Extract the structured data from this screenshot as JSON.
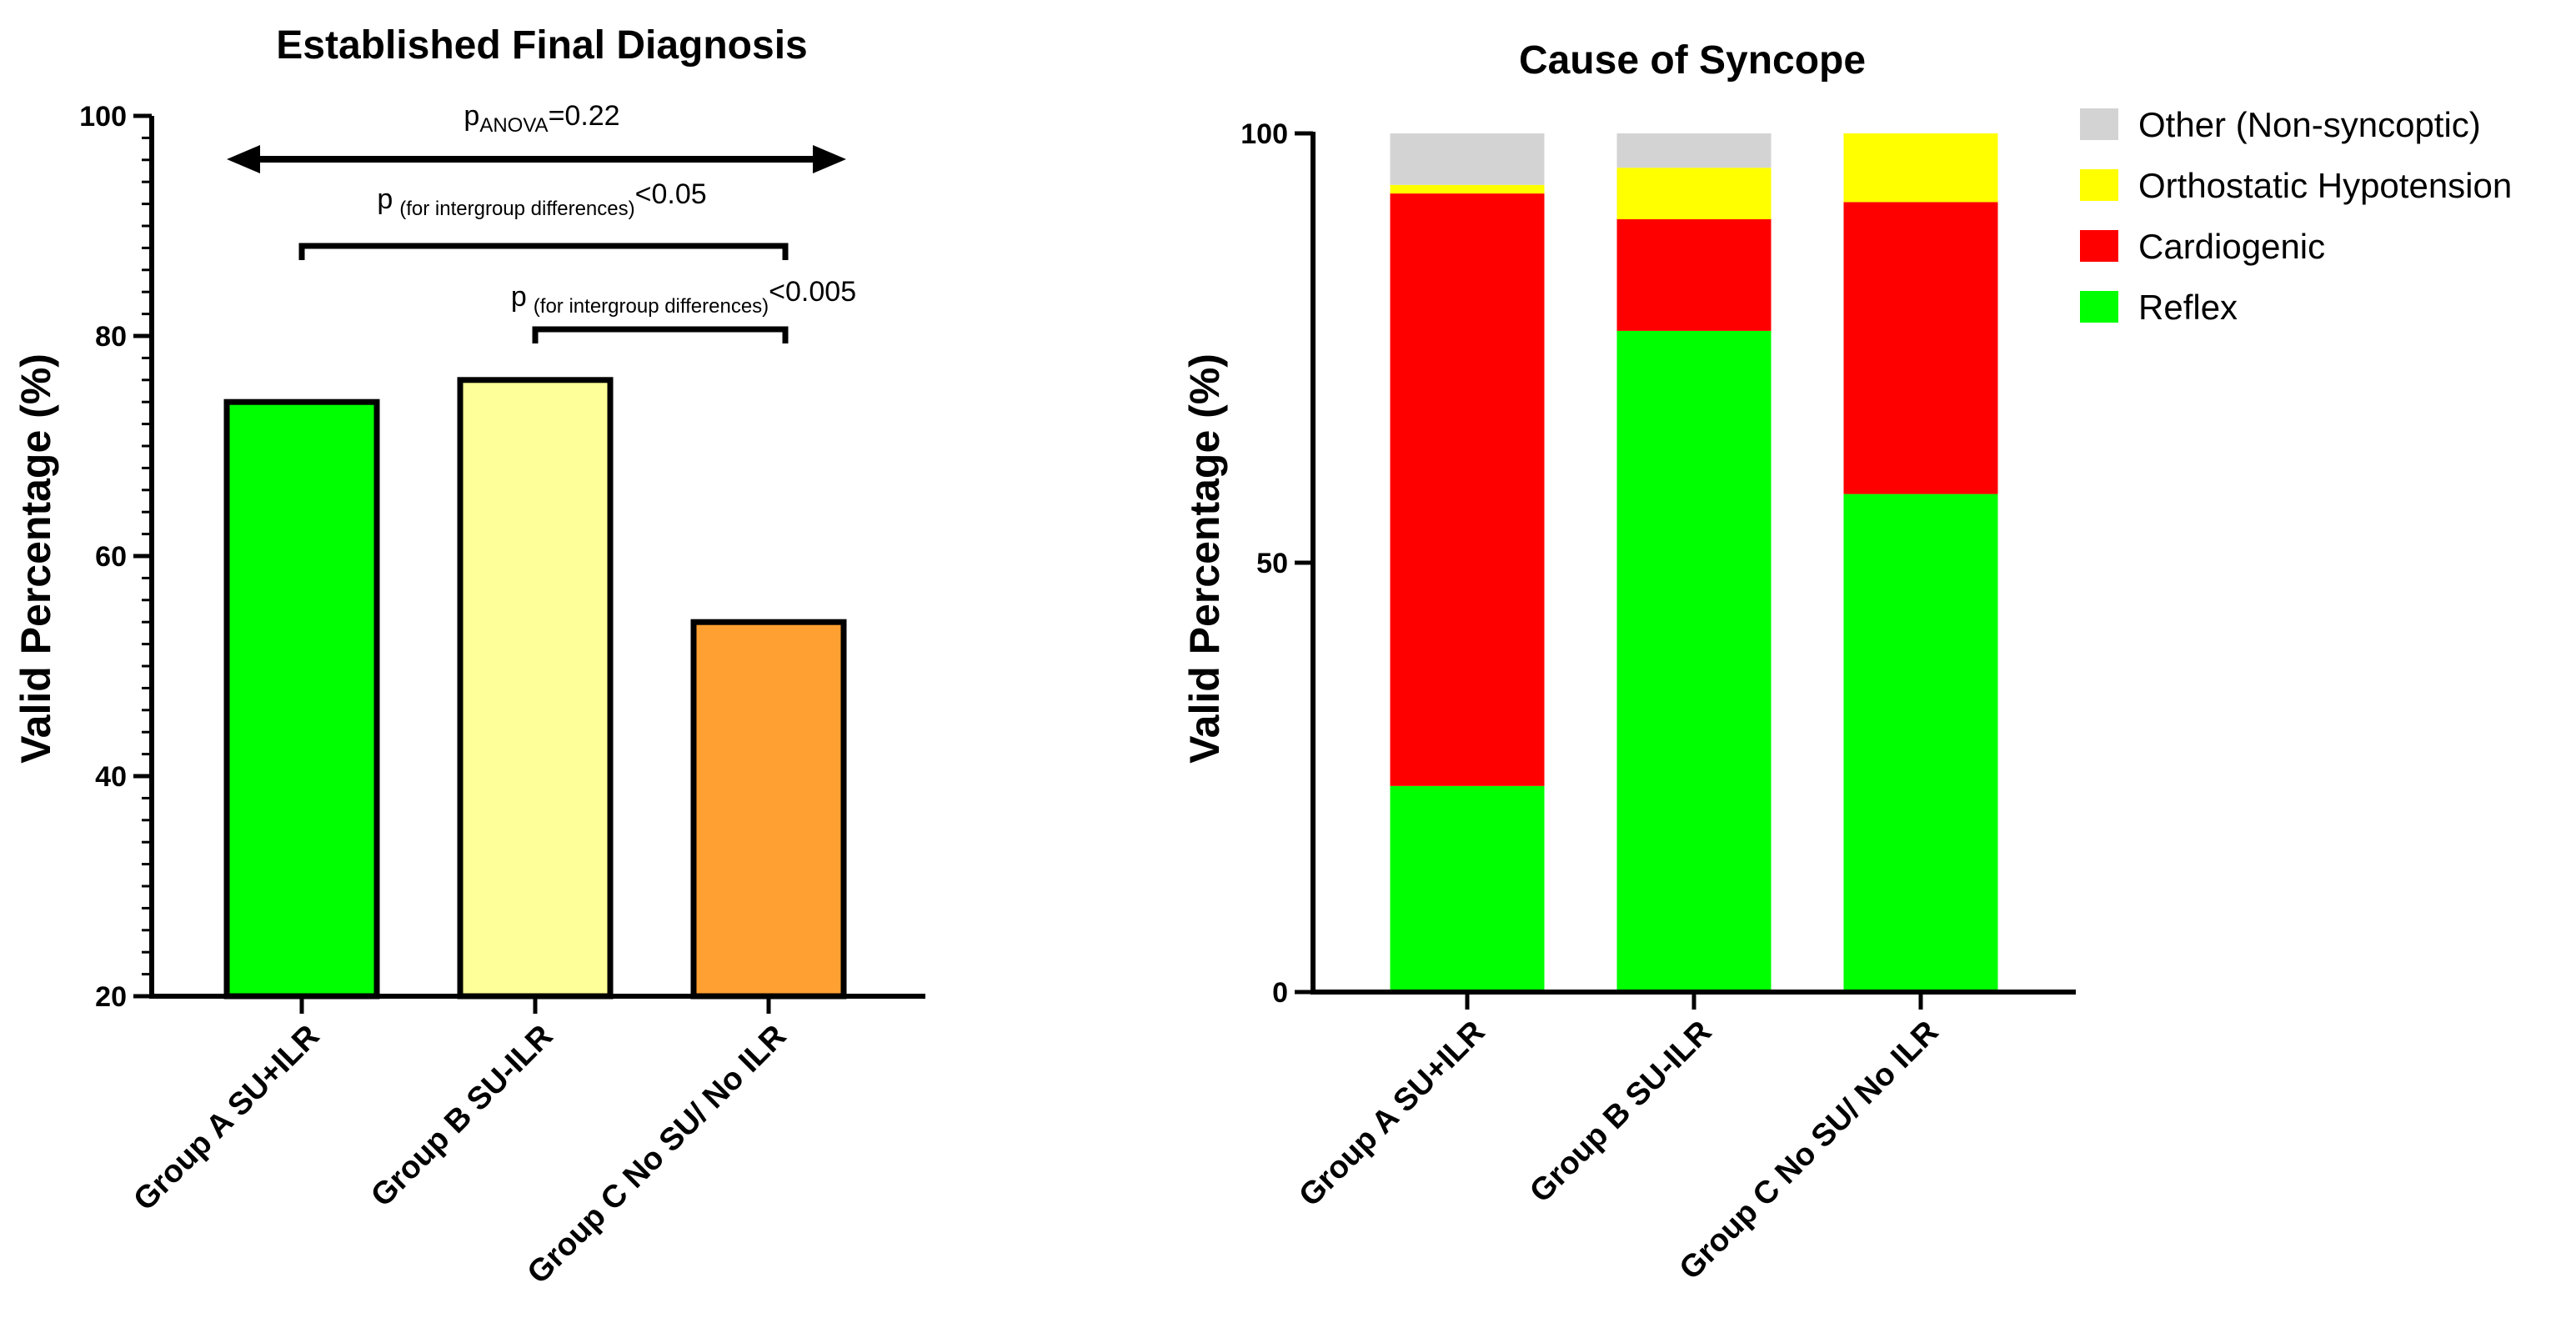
{
  "chart_data": [
    {
      "type": "bar",
      "title": "Established Final Diagnosis",
      "ylabel": "Valid Percentage (%)",
      "xlabel": "",
      "ylim": [
        20,
        100
      ],
      "yticks": [
        "20",
        "40",
        "60",
        "80",
        "100"
      ],
      "categories": [
        "Group A SU+ILR",
        "Group B SU-ILR",
        "Group C No SU/ No ILR"
      ],
      "values": [
        74,
        76,
        54
      ],
      "colors": [
        "#00FF00",
        "#FFFF99",
        "#FFA033"
      ],
      "annotations": {
        "anova": {
          "p": "p",
          "sub": "ANOVA",
          "rest": "=0.22"
        },
        "inter1": {
          "p": "p",
          "sub": "(for intergroup differences)",
          "rest": "<0.05"
        },
        "inter2": {
          "p": "p",
          "sub": "(for intergroup differences)",
          "rest": "<0.005"
        }
      }
    },
    {
      "type": "bar",
      "stacked": true,
      "title": "Cause of Syncope",
      "ylabel": "Valid Percentage (%)",
      "xlabel": "",
      "ylim": [
        0,
        100
      ],
      "yticks": [
        "0",
        "50",
        "100"
      ],
      "categories": [
        "Group A SU+ILR",
        "Group B SU-ILR",
        "Group C No SU/ No ILR"
      ],
      "series": [
        {
          "name": "Reflex",
          "color": "#00FF00",
          "values": [
            24,
            77,
            58
          ]
        },
        {
          "name": "Cardiogenic",
          "color": "#FF0000",
          "values": [
            69,
            13,
            34
          ]
        },
        {
          "name": "Orthostatic Hypotension",
          "color": "#FFFF00",
          "values": [
            1,
            6,
            8
          ]
        },
        {
          "name": "Other (Non-syncoptic)",
          "color": "#D3D3D3",
          "values": [
            6,
            4,
            0
          ]
        }
      ],
      "legend": [
        "Other (Non-syncoptic)",
        "Orthostatic Hypotension",
        "Cardiogenic",
        "Reflex"
      ],
      "legend_position": "top-right"
    }
  ]
}
